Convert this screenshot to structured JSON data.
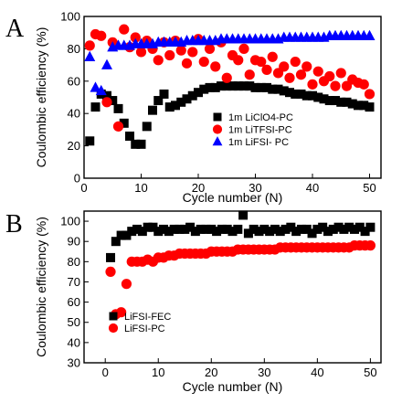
{
  "chart_data": [
    {
      "type": "scatter",
      "panel_label": "A",
      "xlabel": "Cycle number (N)",
      "ylabel": "Coulombic efficiency (%)",
      "xlim": [
        0,
        52
      ],
      "ylim": [
        0,
        100
      ],
      "xticks": [
        0,
        10,
        20,
        30,
        40,
        50
      ],
      "yticks": [
        0,
        20,
        40,
        60,
        80,
        100
      ],
      "legend_position": "center-right",
      "series": [
        {
          "name": "1m LiClO4-PC",
          "marker": "square",
          "color": "#000000",
          "x": [
            1,
            2,
            3,
            4,
            5,
            6,
            7,
            8,
            9,
            10,
            11,
            12,
            13,
            14,
            15,
            16,
            17,
            18,
            19,
            20,
            21,
            22,
            23,
            24,
            25,
            26,
            27,
            28,
            29,
            30,
            31,
            32,
            33,
            34,
            35,
            36,
            37,
            38,
            39,
            40,
            41,
            42,
            43,
            44,
            45,
            46,
            47,
            48,
            49,
            50
          ],
          "y": [
            23,
            44,
            52,
            51,
            48,
            43,
            34,
            26,
            21,
            21,
            32,
            42,
            48,
            52,
            44,
            45,
            47,
            49,
            51,
            53,
            55,
            56,
            56,
            57,
            57,
            57,
            57,
            57,
            57,
            56,
            56,
            56,
            55,
            55,
            54,
            53,
            52,
            52,
            51,
            51,
            50,
            49,
            48,
            48,
            47,
            47,
            46,
            45,
            45,
            44
          ]
        },
        {
          "name": "1m LiTFSI-PC",
          "marker": "circle",
          "color": "#ff0000",
          "x": [
            1,
            2,
            3,
            4,
            5,
            6,
            7,
            8,
            9,
            10,
            11,
            12,
            13,
            14,
            15,
            16,
            17,
            18,
            19,
            20,
            21,
            22,
            23,
            24,
            25,
            26,
            27,
            28,
            29,
            30,
            31,
            32,
            33,
            34,
            35,
            36,
            37,
            38,
            39,
            40,
            41,
            42,
            43,
            44,
            45,
            46,
            47,
            48,
            49,
            50
          ],
          "y": [
            82,
            89,
            88,
            47,
            84,
            32,
            92,
            81,
            87,
            78,
            85,
            80,
            73,
            84,
            76,
            85,
            79,
            71,
            78,
            86,
            72,
            80,
            69,
            84,
            62,
            76,
            73,
            80,
            64,
            73,
            72,
            67,
            75,
            65,
            69,
            62,
            72,
            64,
            69,
            58,
            66,
            60,
            63,
            57,
            65,
            57,
            61,
            59,
            58,
            52
          ]
        },
        {
          "name": "1m LiFSI- PC",
          "marker": "triangle",
          "color": "#0000ff",
          "x": [
            1,
            2,
            3,
            4,
            5,
            6,
            7,
            8,
            9,
            10,
            11,
            12,
            13,
            14,
            15,
            16,
            17,
            18,
            19,
            20,
            21,
            22,
            23,
            24,
            25,
            26,
            27,
            28,
            29,
            30,
            31,
            32,
            33,
            34,
            35,
            36,
            37,
            38,
            39,
            40,
            41,
            42,
            43,
            44,
            45,
            46,
            47,
            48,
            49,
            50
          ],
          "y": [
            75,
            56,
            54,
            70,
            81,
            82,
            82,
            82,
            83,
            83,
            83,
            83,
            84,
            84,
            84,
            84,
            84,
            85,
            85,
            85,
            85,
            85,
            85,
            86,
            86,
            86,
            86,
            86,
            86,
            86,
            86,
            86,
            86,
            86,
            87,
            87,
            87,
            87,
            87,
            87,
            87,
            87,
            88,
            88,
            88,
            88,
            88,
            88,
            88,
            88
          ]
        }
      ]
    },
    {
      "type": "scatter",
      "panel_label": "B",
      "xlabel": "Cycle number (N)",
      "ylabel": "Coulombic efficiency (%)",
      "xlim": [
        -4,
        52
      ],
      "ylim": [
        30,
        105
      ],
      "xticks": [
        0,
        10,
        20,
        30,
        40,
        50
      ],
      "yticks": [
        30,
        40,
        50,
        60,
        70,
        80,
        90,
        100
      ],
      "legend_position": "bottom-left",
      "series": [
        {
          "name": "LiFSI-FEC",
          "marker": "square",
          "color": "#000000",
          "x": [
            1,
            2,
            3,
            4,
            5,
            6,
            7,
            8,
            9,
            10,
            11,
            12,
            13,
            14,
            15,
            16,
            17,
            18,
            19,
            20,
            21,
            22,
            23,
            24,
            25,
            26,
            27,
            28,
            29,
            30,
            31,
            32,
            33,
            34,
            35,
            36,
            37,
            38,
            39,
            40,
            41,
            42,
            43,
            44,
            45,
            46,
            47,
            48,
            49,
            50
          ],
          "y": [
            82,
            90,
            93,
            93,
            95,
            96,
            95,
            97,
            97,
            95,
            96,
            95,
            96,
            96,
            96,
            97,
            95,
            96,
            96,
            96,
            95,
            96,
            96,
            95,
            96,
            103,
            94,
            96,
            95,
            96,
            95,
            96,
            95,
            96,
            97,
            95,
            96,
            96,
            94,
            96,
            97,
            95,
            96,
            97,
            96,
            97,
            96,
            97,
            95,
            97
          ]
        },
        {
          "name": "LiFSI-PC",
          "marker": "circle",
          "color": "#ff0000",
          "x": [
            1,
            2,
            3,
            4,
            5,
            6,
            7,
            8,
            9,
            10,
            11,
            12,
            13,
            14,
            15,
            16,
            17,
            18,
            19,
            20,
            21,
            22,
            23,
            24,
            25,
            26,
            27,
            28,
            29,
            30,
            31,
            32,
            33,
            34,
            35,
            36,
            37,
            38,
            39,
            40,
            41,
            42,
            43,
            44,
            45,
            46,
            47,
            48,
            49,
            50
          ],
          "y": [
            75,
            54,
            55,
            69,
            80,
            80,
            80,
            81,
            80,
            82,
            82,
            83,
            83,
            84,
            84,
            84,
            84,
            84,
            84,
            85,
            85,
            85,
            85,
            85,
            86,
            86,
            86,
            86,
            86,
            86,
            86,
            86,
            87,
            87,
            87,
            87,
            87,
            87,
            87,
            87,
            87,
            87,
            87,
            87,
            87,
            87,
            88,
            88,
            88,
            88
          ]
        }
      ]
    }
  ]
}
